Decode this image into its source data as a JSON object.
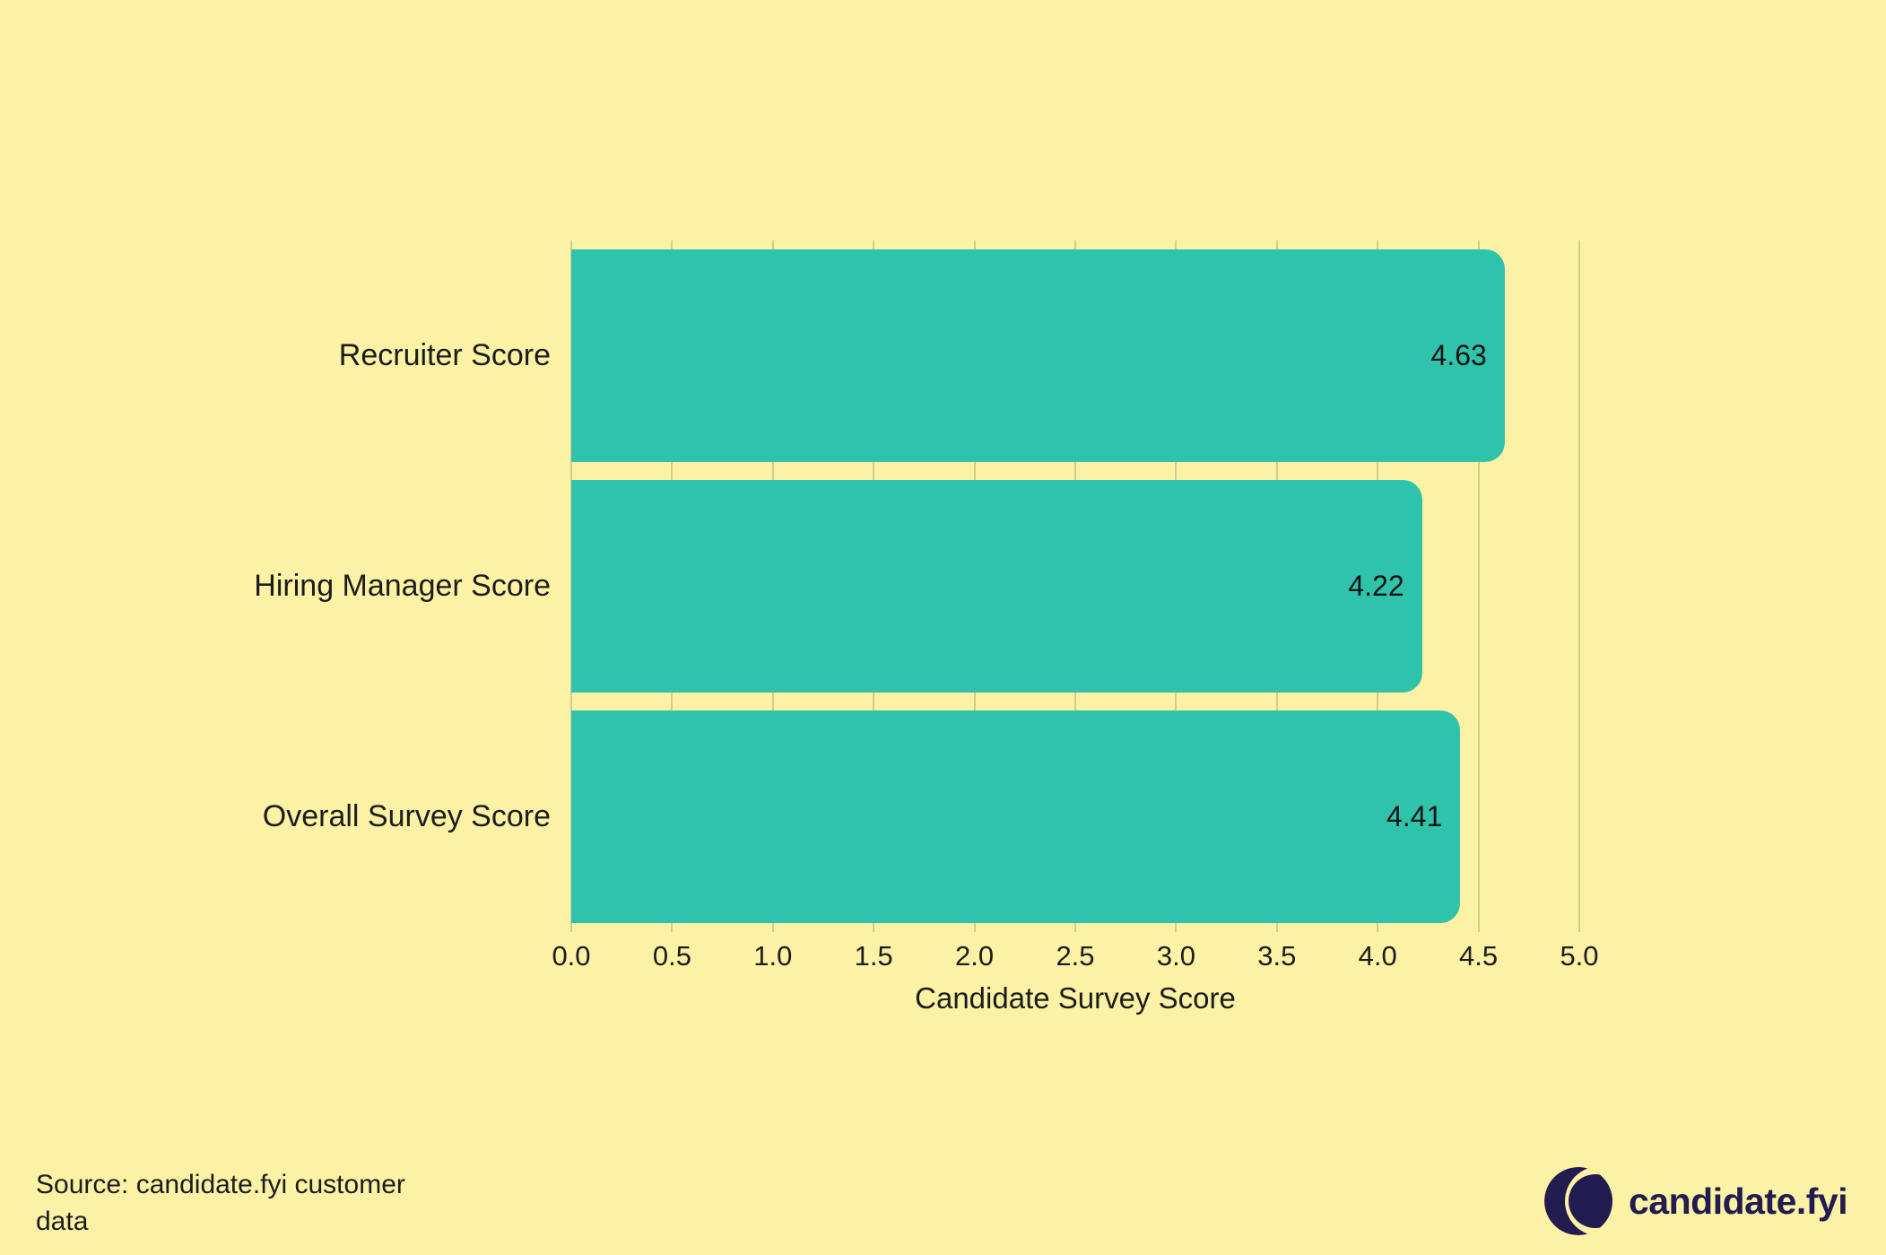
{
  "chart_data": {
    "type": "bar",
    "orientation": "horizontal",
    "title": "",
    "categories": [
      "Recruiter Score",
      "Hiring Manager Score",
      "Overall Survey Score"
    ],
    "values": [
      4.63,
      4.22,
      4.41
    ],
    "value_labels": [
      "4.63",
      "4.22",
      "4.41"
    ],
    "xlabel": "Candidate Survey Score",
    "ylabel": "",
    "xlim": [
      0,
      5
    ],
    "xticks": [
      0.0,
      0.5,
      1.0,
      1.5,
      2.0,
      2.5,
      3.0,
      3.5,
      4.0,
      4.5,
      5.0
    ],
    "xtick_labels": [
      "0.0",
      "0.5",
      "1.0",
      "1.5",
      "2.0",
      "2.5",
      "3.0",
      "3.5",
      "4.0",
      "4.5",
      "5.0"
    ],
    "grid": "vertical",
    "legend": "none",
    "colors": {
      "bar": "#2fc3ab",
      "background": "#fcf2a5",
      "gridline": "#d5cc92",
      "text": "#1c1c1c"
    }
  },
  "footer": {
    "source": "Source: candidate.fyi customer data",
    "brand": "candidate.fyi",
    "brand_color": "#221c50"
  }
}
